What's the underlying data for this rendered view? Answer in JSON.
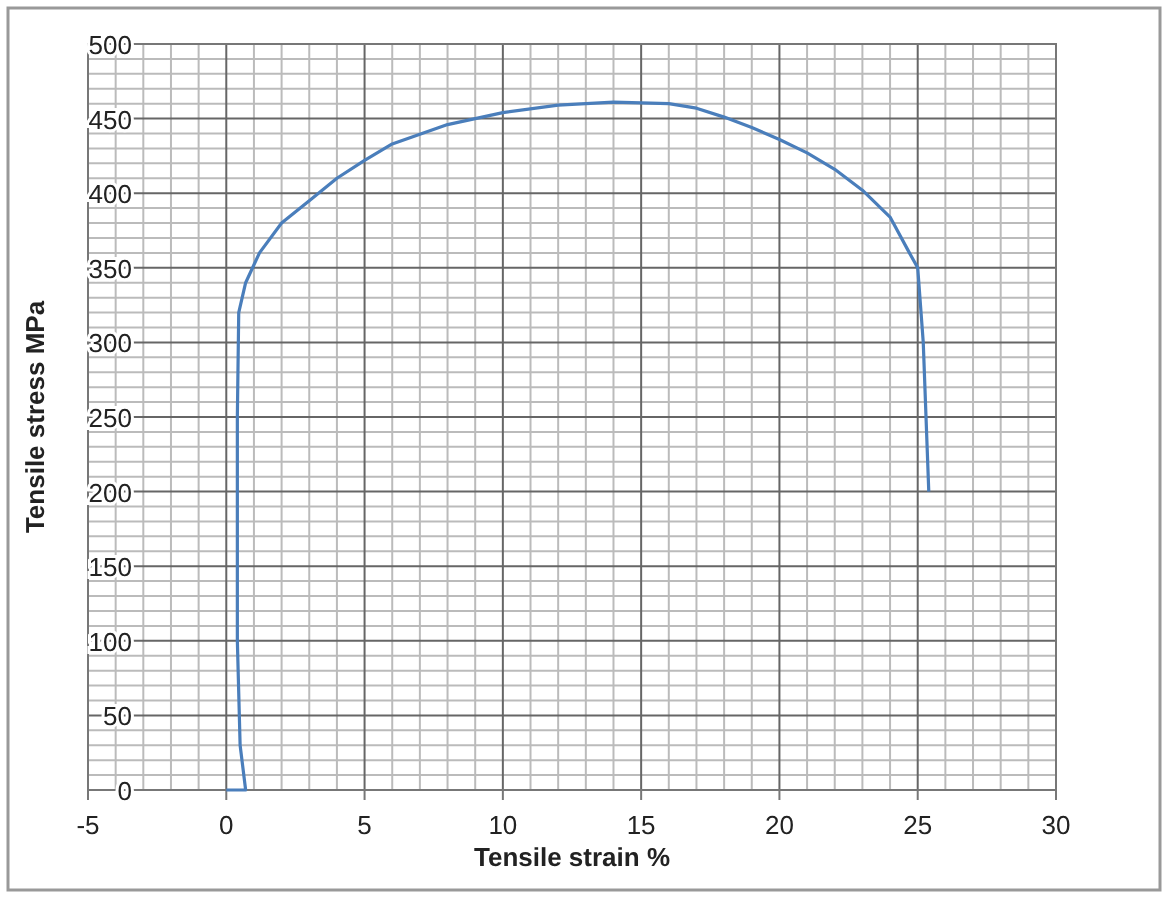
{
  "chart_data": {
    "type": "line",
    "xlabel": "Tensile strain %",
    "ylabel": "Tensile stress MPa",
    "xlim": [
      -5,
      30
    ],
    "xticks": [
      -5,
      0,
      5,
      10,
      15,
      20,
      25,
      30
    ],
    "ylim": [
      0,
      500
    ],
    "yticks": [
      0,
      50,
      100,
      150,
      200,
      250,
      300,
      350,
      400,
      450,
      500
    ],
    "grid": true,
    "series": [
      {
        "color": "#4a7ebb",
        "x": [
          0,
          0.7,
          0.5,
          0.4,
          0.4,
          0.45,
          0.7,
          1.2,
          2,
          3,
          4,
          5,
          6,
          8,
          10,
          12,
          14,
          16,
          17,
          18,
          19,
          20,
          21,
          22,
          23,
          24,
          24.7,
          25,
          25.2,
          25.4
        ],
        "values": [
          0,
          0,
          30,
          100,
          250,
          320,
          340,
          360,
          380,
          395,
          410,
          422,
          433,
          446,
          454,
          459,
          461,
          460,
          457,
          451,
          444,
          436,
          427,
          416,
          402,
          384,
          360,
          350,
          300,
          200
        ]
      }
    ]
  }
}
